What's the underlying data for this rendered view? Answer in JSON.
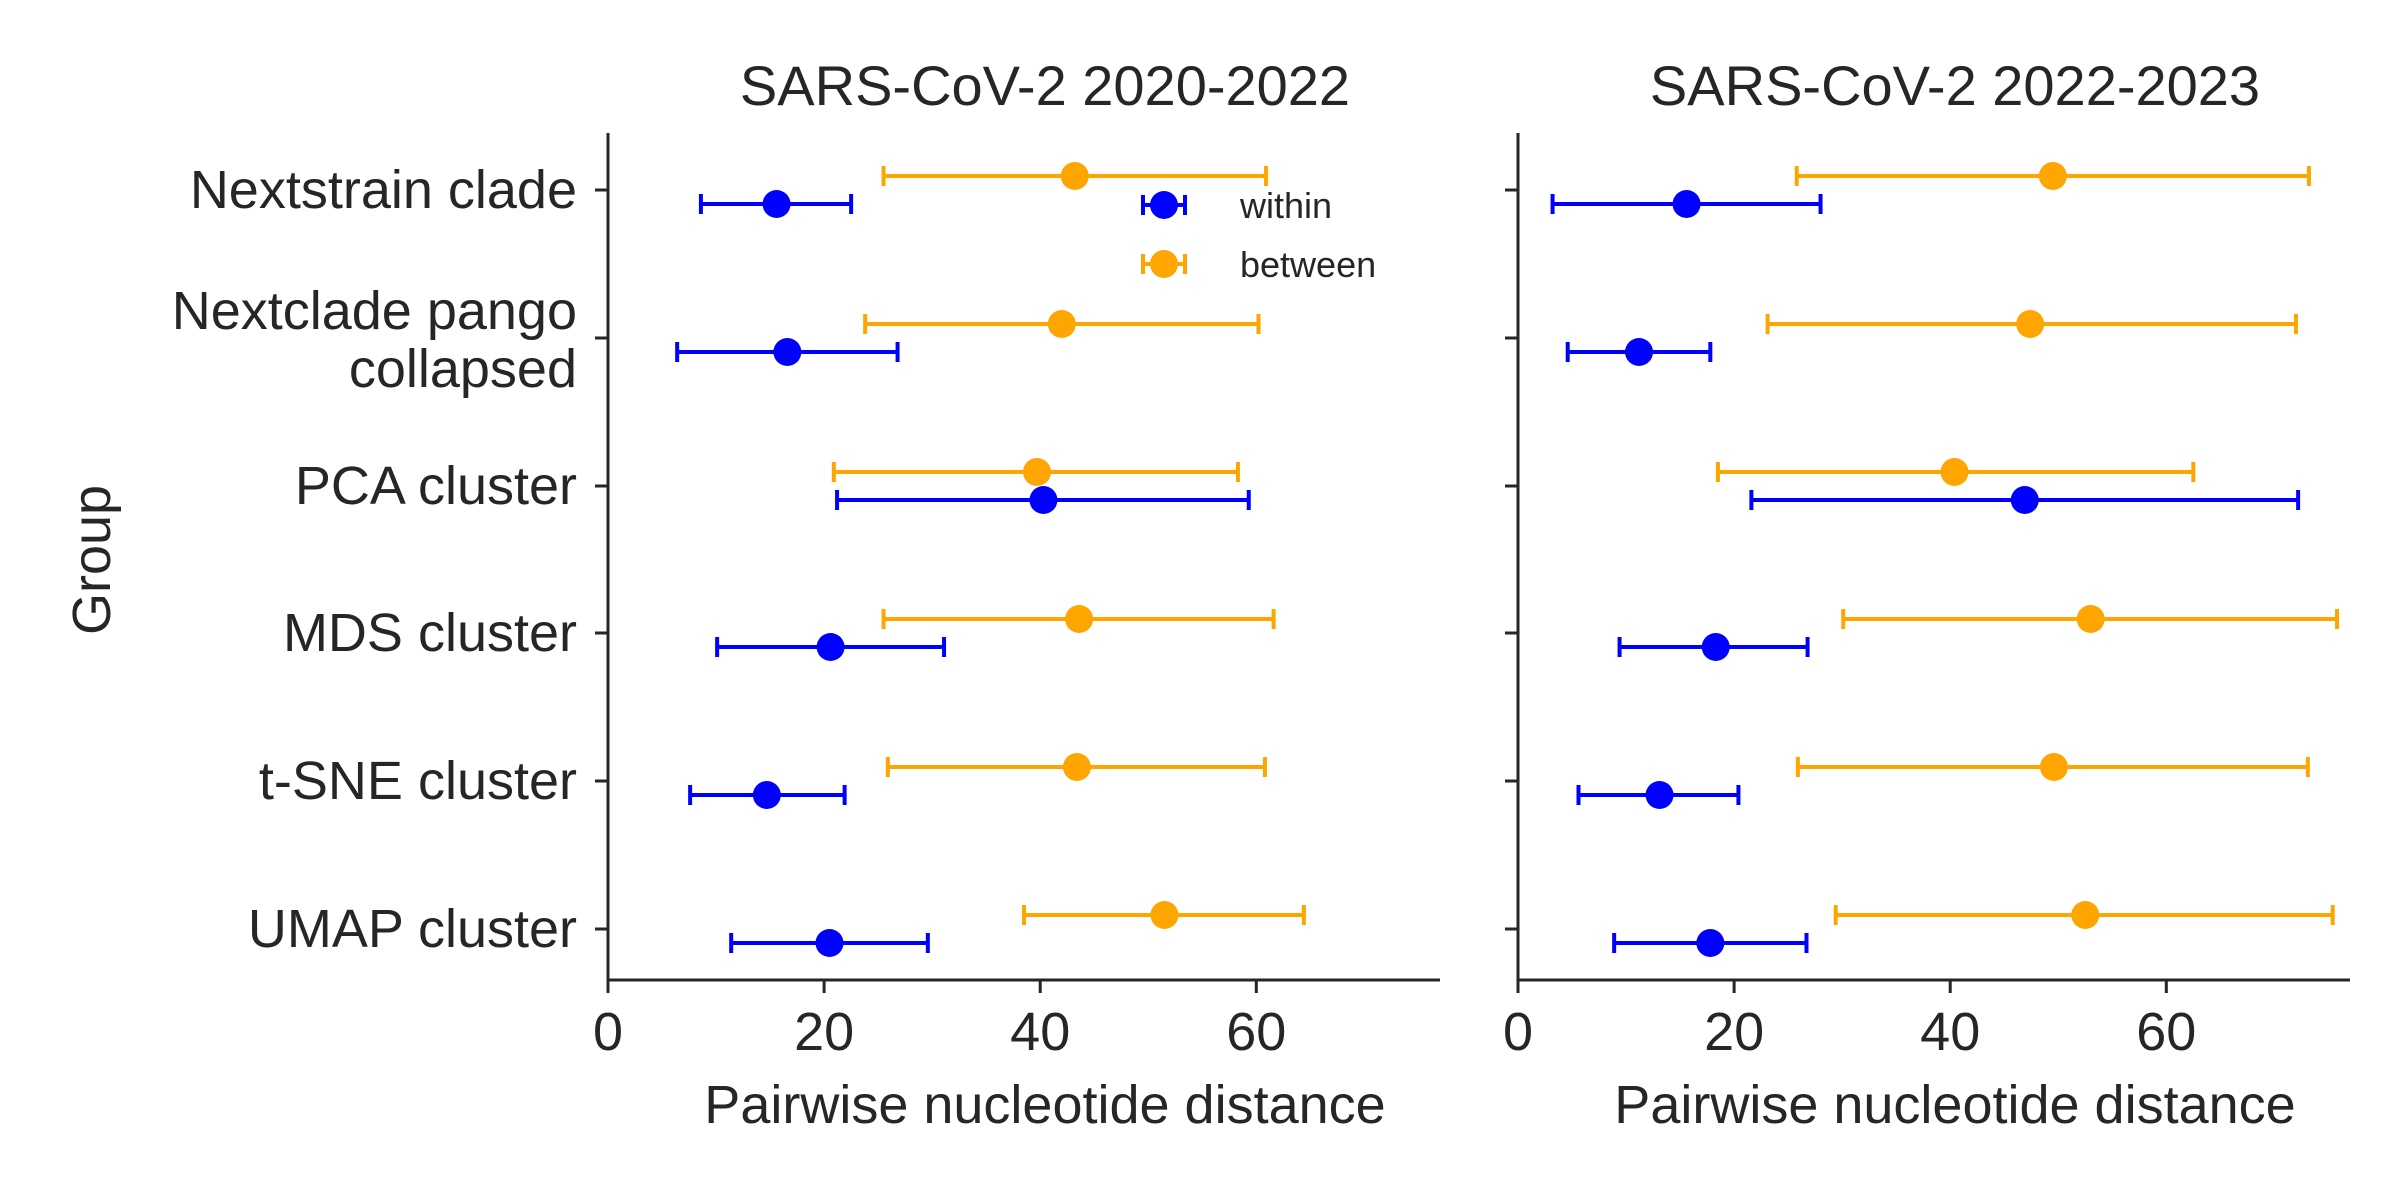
{
  "colors": {
    "within": "#0000FF",
    "between": "#FFA500",
    "axis": "#262626"
  },
  "chart_data": [
    {
      "type": "scatter",
      "title": "SARS-CoV-2 2020-2022",
      "xlabel": "Pairwise nucleotide distance",
      "ylabel": "Group",
      "xlim": [
        0,
        77
      ],
      "xticks": [
        0,
        20,
        40,
        60
      ],
      "categories": [
        "Nextstrain clade",
        "Nextclade pango collapsed",
        "PCA cluster",
        "MDS cluster",
        "t-SNE cluster",
        "UMAP cluster"
      ],
      "category_lines": [
        [
          "Nextstrain clade"
        ],
        [
          "Nextclade pango",
          "collapsed"
        ],
        [
          "PCA cluster"
        ],
        [
          "MDS cluster"
        ],
        [
          "t-SNE cluster"
        ],
        [
          "UMAP cluster"
        ]
      ],
      "legend": {
        "position": "top-right",
        "entries": [
          "within",
          "between"
        ]
      },
      "series": [
        {
          "name": "within",
          "color": "#0000FF",
          "values": [
            15.6,
            16.6,
            40.3,
            20.6,
            14.7,
            20.5
          ],
          "err_low": [
            8.6,
            6.4,
            21.2,
            10.1,
            7.6,
            11.4
          ],
          "err_high": [
            22.5,
            26.8,
            59.3,
            31.1,
            21.9,
            29.6
          ]
        },
        {
          "name": "between",
          "color": "#FFA500",
          "values": [
            43.2,
            42.0,
            39.7,
            43.6,
            43.4,
            51.5
          ],
          "err_low": [
            25.5,
            23.8,
            20.9,
            25.5,
            25.9,
            38.5
          ],
          "err_high": [
            60.9,
            60.2,
            58.3,
            61.6,
            60.8,
            64.4
          ]
        }
      ]
    },
    {
      "type": "scatter",
      "title": "SARS-CoV-2 2022-2023",
      "xlabel": "Pairwise nucleotide distance",
      "ylabel": "",
      "xlim": [
        0,
        77
      ],
      "xticks": [
        0,
        20,
        40,
        60
      ],
      "categories": [
        "Nextstrain clade",
        "Nextclade pango collapsed",
        "PCA cluster",
        "MDS cluster",
        "t-SNE cluster",
        "UMAP cluster"
      ],
      "series": [
        {
          "name": "within",
          "color": "#0000FF",
          "values": [
            15.6,
            11.2,
            46.9,
            18.3,
            13.1,
            17.8
          ],
          "err_low": [
            3.2,
            4.6,
            21.6,
            9.4,
            5.6,
            8.9
          ],
          "err_high": [
            28.0,
            17.8,
            72.2,
            26.8,
            20.4,
            26.7
          ]
        },
        {
          "name": "between",
          "color": "#FFA500",
          "values": [
            49.5,
            47.4,
            40.4,
            53.0,
            49.6,
            52.5
          ],
          "err_low": [
            25.8,
            23.1,
            18.5,
            30.1,
            25.9,
            29.4
          ],
          "err_high": [
            73.2,
            72.0,
            62.5,
            75.8,
            73.1,
            75.4
          ]
        }
      ]
    }
  ]
}
